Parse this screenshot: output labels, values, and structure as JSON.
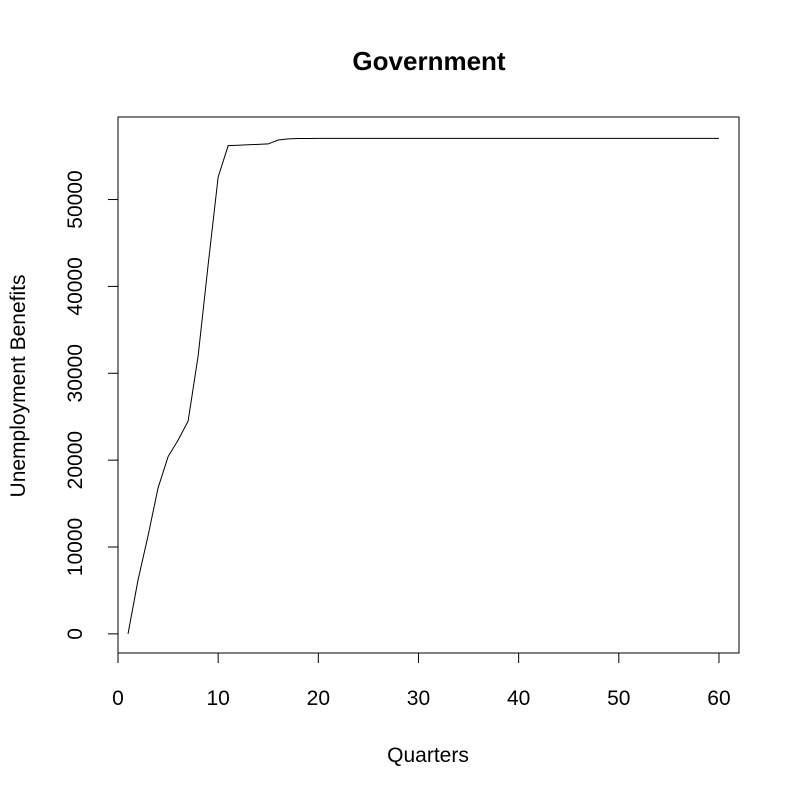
{
  "chart_data": {
    "type": "line",
    "title": "Government",
    "xlabel": "Quarters",
    "ylabel": "Unemployment Benefits",
    "xlim": [
      0,
      62
    ],
    "ylim": [
      -2200,
      59500
    ],
    "x_ticks": [
      0,
      10,
      20,
      30,
      40,
      50,
      60
    ],
    "y_ticks": [
      0,
      10000,
      20000,
      30000,
      40000,
      50000
    ],
    "grid": false,
    "legend": "none",
    "series": [
      {
        "x": [
          1,
          2,
          3,
          4,
          5,
          6,
          7,
          8,
          9,
          10,
          11,
          12,
          13,
          14,
          15,
          16,
          17,
          18,
          19,
          20,
          25,
          30,
          35,
          40,
          45,
          50,
          55,
          60
        ],
        "values": [
          0,
          6200,
          11300,
          16800,
          20400,
          22300,
          24500,
          32000,
          42500,
          52600,
          56200,
          56250,
          56300,
          56350,
          56400,
          56850,
          56980,
          57020,
          57030,
          57040,
          57040,
          57040,
          57040,
          57040,
          57040,
          57040,
          57040,
          57040
        ],
        "color": "#000000"
      }
    ]
  }
}
